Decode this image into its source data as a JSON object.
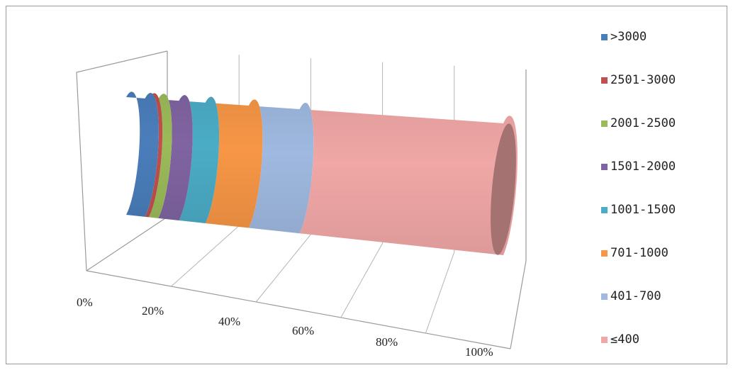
{
  "chart_data": {
    "type": "bar",
    "subtype": "3d-cylinder-stacked-percent",
    "orientation": "horizontal",
    "title": "",
    "xlabel": "",
    "ylabel": "",
    "xlim": [
      0,
      100
    ],
    "x_ticks": [
      "0%",
      "20%",
      "40%",
      "60%",
      "80%",
      "100%"
    ],
    "grid": true,
    "legend_position": "right",
    "categories": [
      ""
    ],
    "series": [
      {
        "name": ">3000",
        "color": "#4a7ebb",
        "values": [
          5.0
        ]
      },
      {
        "name": "2501-3000",
        "color": "#c0504d",
        "values": [
          1.0
        ]
      },
      {
        "name": "2001-2500",
        "color": "#9bbb59",
        "values": [
          2.5
        ]
      },
      {
        "name": "1501-2000",
        "color": "#8064a2",
        "values": [
          5.5
        ]
      },
      {
        "name": "1001-1500",
        "color": "#4bacc6",
        "values": [
          7.0
        ]
      },
      {
        "name": "701-1000",
        "color": "#f79646",
        "values": [
          11.5
        ]
      },
      {
        "name": "401-700",
        "color": "#9fb9e0",
        "values": [
          13.5
        ]
      },
      {
        "name": "≤400",
        "color": "#f0a7a6",
        "values": [
          54.0
        ]
      }
    ]
  }
}
